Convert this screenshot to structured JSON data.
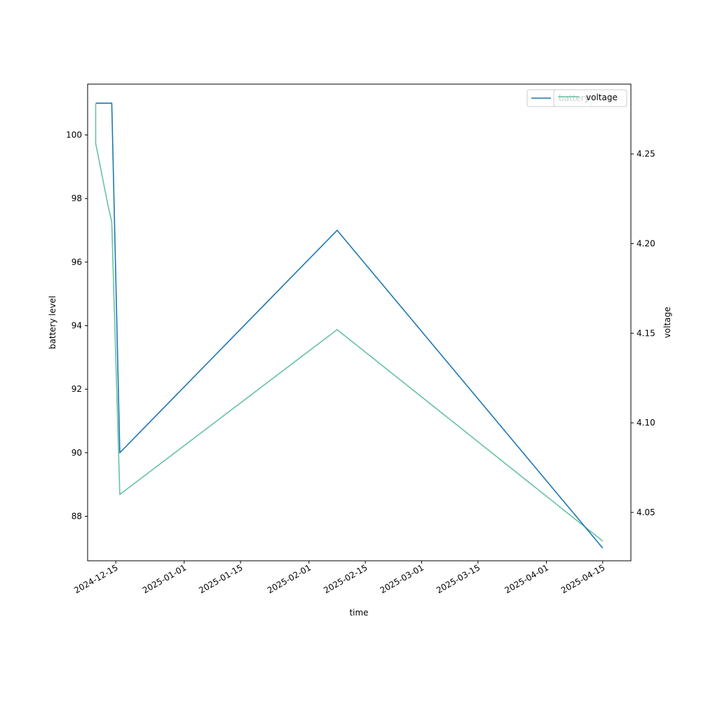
{
  "chart_data": {
    "type": "line",
    "xlabel": "time",
    "ylabel_left": "battery level",
    "ylabel_right": "voltage",
    "x_ticks": [
      "2024-12-15",
      "2025-01-01",
      "2025-01-15",
      "2025-02-01",
      "2025-02-15",
      "2025-03-01",
      "2025-03-15",
      "2025-04-01",
      "2025-04-15"
    ],
    "y_left_ticks": [
      88,
      90,
      92,
      94,
      96,
      98,
      100
    ],
    "y_right_ticks": [
      4.05,
      4.1,
      4.15,
      4.2,
      4.25
    ],
    "xlim": [
      "2024-12-08",
      "2025-04-22"
    ],
    "ylim_left": [
      86.6,
      101.6
    ],
    "ylim_right": [
      4.023,
      4.289
    ],
    "legend_position": "top-right",
    "series": [
      {
        "name": "battery",
        "axis": "left",
        "color": "#1f77b4",
        "x": [
          "2024-12-10",
          "2024-12-14",
          "2024-12-16",
          "2025-02-08",
          "2025-04-15"
        ],
        "values": [
          101,
          101,
          90,
          97,
          87
        ]
      },
      {
        "name": "voltage",
        "axis": "right",
        "color": "#66c2a5",
        "x": [
          "2024-12-10",
          "2024-12-10",
          "2024-12-13",
          "2024-12-14",
          "2024-12-16",
          "2025-02-08",
          "2025-04-15"
        ],
        "values": [
          4.278,
          4.256,
          4.222,
          4.212,
          4.06,
          4.152,
          4.034
        ]
      }
    ]
  }
}
